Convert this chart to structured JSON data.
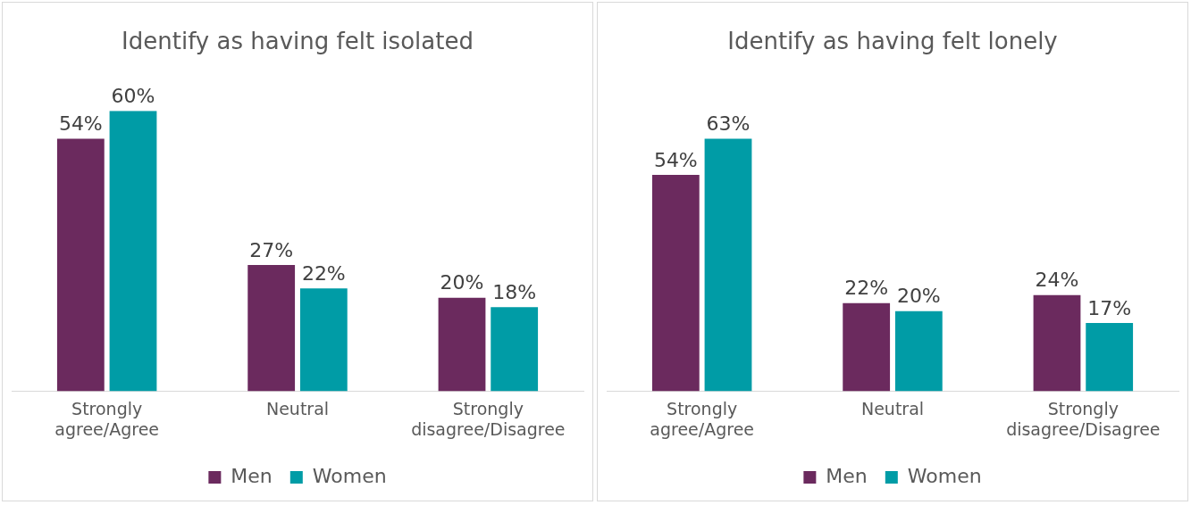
{
  "chart_data": [
    {
      "type": "bar",
      "title": "Identify as having felt isolated",
      "categories": [
        "Strongly agree/Agree",
        "Neutral",
        "Strongly disagree/Disagree"
      ],
      "series": [
        {
          "name": "Men",
          "color": "#6b2a5e",
          "values": [
            54,
            27,
            20
          ],
          "value_labels": [
            "54%",
            "27%",
            "20%"
          ]
        },
        {
          "name": "Women",
          "color": "#009ca6",
          "values": [
            60,
            22,
            18
          ],
          "value_labels": [
            "60%",
            "22%",
            "18%"
          ]
        }
      ],
      "tick_labels": "x",
      "grid": false,
      "legend": "bottom"
    },
    {
      "type": "bar",
      "title": "Identify as having felt lonely",
      "categories": [
        "Strongly agree/Agree",
        "Neutral",
        "Strongly disagree/Disagree"
      ],
      "series": [
        {
          "name": "Men",
          "color": "#6b2a5e",
          "values": [
            54,
            22,
            24
          ],
          "value_labels": [
            "54%",
            "22%",
            "24%"
          ]
        },
        {
          "name": "Women",
          "color": "#009ca6",
          "values": [
            63,
            20,
            17
          ],
          "value_labels": [
            "63%",
            "20%",
            "17%"
          ]
        }
      ],
      "tick_labels": "x",
      "grid": false,
      "legend": "bottom"
    }
  ]
}
